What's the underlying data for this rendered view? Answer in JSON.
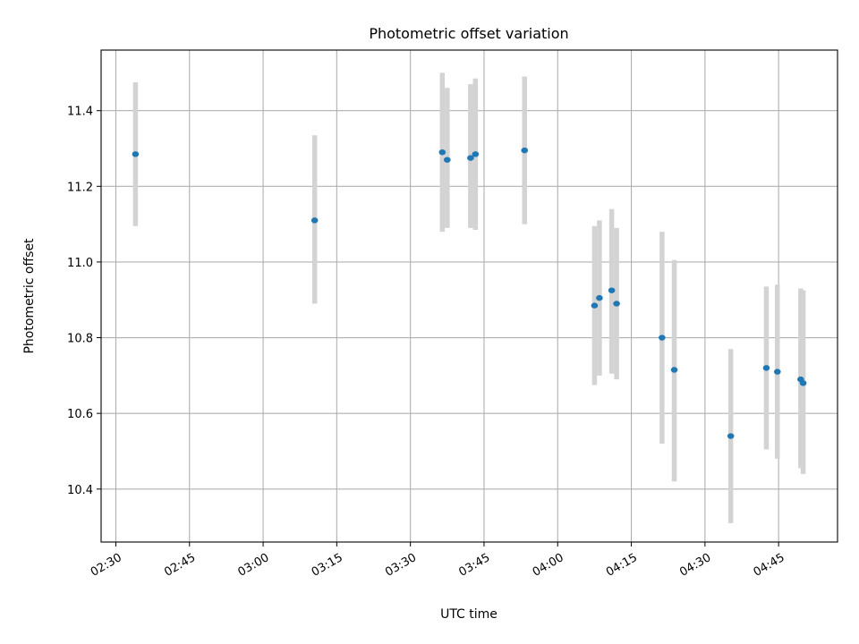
{
  "chart_data": {
    "type": "scatter",
    "title": "Photometric offset variation",
    "xlabel": "UTC time",
    "ylabel": "Photometric offset",
    "x_axis_type": "time",
    "xlim": [
      "02:27",
      "04:57"
    ],
    "ylim": [
      10.26,
      11.56
    ],
    "grid": true,
    "x_ticks": [
      "02:30",
      "02:45",
      "03:00",
      "03:15",
      "03:30",
      "03:45",
      "04:00",
      "04:15",
      "04:30",
      "04:45"
    ],
    "y_ticks": [
      "10.4",
      "10.6",
      "10.8",
      "11.0",
      "11.2",
      "11.4"
    ],
    "point_color": "#1f77b4",
    "errorbar_color": "#d3d3d3",
    "series": [
      {
        "points": [
          {
            "t": "02:34:00",
            "y": 11.285,
            "lo": 11.095,
            "hi": 11.475
          },
          {
            "t": "03:10:30",
            "y": 11.11,
            "lo": 10.89,
            "hi": 11.335
          },
          {
            "t": "03:36:30",
            "y": 11.29,
            "lo": 11.08,
            "hi": 11.5
          },
          {
            "t": "03:37:30",
            "y": 11.27,
            "lo": 11.09,
            "hi": 11.46
          },
          {
            "t": "03:42:15",
            "y": 11.275,
            "lo": 11.09,
            "hi": 11.47
          },
          {
            "t": "03:43:15",
            "y": 11.285,
            "lo": 11.085,
            "hi": 11.485
          },
          {
            "t": "03:53:15",
            "y": 11.295,
            "lo": 11.1,
            "hi": 11.49
          },
          {
            "t": "04:07:30",
            "y": 10.885,
            "lo": 10.675,
            "hi": 11.095
          },
          {
            "t": "04:08:30",
            "y": 10.905,
            "lo": 10.7,
            "hi": 11.11
          },
          {
            "t": "04:11:00",
            "y": 10.925,
            "lo": 10.705,
            "hi": 11.14
          },
          {
            "t": "04:12:00",
            "y": 10.89,
            "lo": 10.69,
            "hi": 11.09
          },
          {
            "t": "04:21:15",
            "y": 10.8,
            "lo": 10.52,
            "hi": 11.08
          },
          {
            "t": "04:23:45",
            "y": 10.715,
            "lo": 10.42,
            "hi": 11.005
          },
          {
            "t": "04:35:15",
            "y": 10.54,
            "lo": 10.31,
            "hi": 10.77
          },
          {
            "t": "04:42:30",
            "y": 10.72,
            "lo": 10.505,
            "hi": 10.935
          },
          {
            "t": "04:44:45",
            "y": 10.71,
            "lo": 10.48,
            "hi": 10.94
          },
          {
            "t": "04:49:30",
            "y": 10.69,
            "lo": 10.455,
            "hi": 10.93
          },
          {
            "t": "04:50:00",
            "y": 10.68,
            "lo": 10.44,
            "hi": 10.925
          }
        ]
      }
    ]
  }
}
